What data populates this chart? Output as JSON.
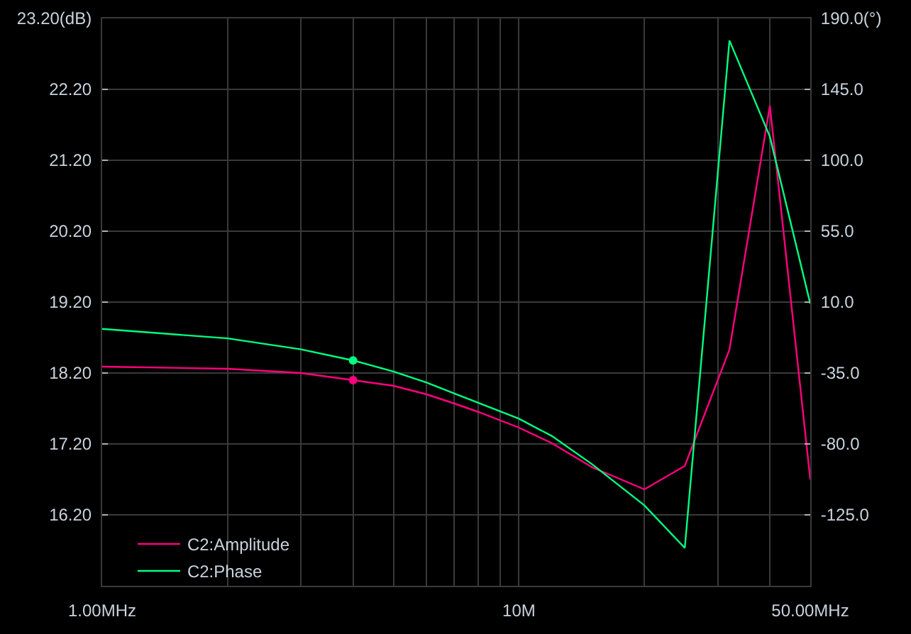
{
  "chart_data": {
    "type": "line",
    "log": "x",
    "grid": true,
    "legend": "bottom left",
    "line_style": "solid",
    "x": [
      1,
      2,
      3,
      4,
      5,
      6,
      7,
      8,
      10,
      12,
      15,
      20,
      25,
      32,
      40,
      50
    ],
    "xlim": [
      1,
      50
    ],
    "xticks": [
      {
        "value": 1,
        "label": "1.00MHz"
      },
      {
        "value": 2,
        "label": null
      },
      {
        "value": 3,
        "label": null
      },
      {
        "value": 4,
        "label": null
      },
      {
        "value": 5,
        "label": null
      },
      {
        "value": 6,
        "label": null
      },
      {
        "value": 7,
        "label": null
      },
      {
        "value": 8,
        "label": null
      },
      {
        "value": 9,
        "label": null
      },
      {
        "value": 10,
        "label": "10M"
      },
      {
        "value": 20,
        "label": null
      },
      {
        "value": 30,
        "label": null
      },
      {
        "value": 40,
        "label": null
      },
      {
        "value": 50,
        "label": "50.00MHz"
      }
    ],
    "ylim": [
      15.2,
      23.2
    ],
    "yticks": [
      {
        "value": 16.2,
        "label": "16.20"
      },
      {
        "value": 17.2,
        "label": "17.20"
      },
      {
        "value": 18.2,
        "label": "18.20"
      },
      {
        "value": 19.2,
        "label": "19.20"
      },
      {
        "value": 20.2,
        "label": "20.20"
      },
      {
        "value": 21.2,
        "label": "21.20"
      },
      {
        "value": 22.2,
        "label": "22.20"
      },
      {
        "value": 23.2,
        "label": "23.20(dB)"
      }
    ],
    "y2lim": [
      -170,
      190
    ],
    "y2ticks": [
      {
        "value": -125,
        "label": "-125.0"
      },
      {
        "value": -80,
        "label": "-80.0"
      },
      {
        "value": -35,
        "label": "-35.0"
      },
      {
        "value": 10,
        "label": "10.0"
      },
      {
        "value": 55,
        "label": "55.0"
      },
      {
        "value": 100,
        "label": "100.0"
      },
      {
        "value": 145,
        "label": "145.0"
      },
      {
        "value": 190,
        "label": "190.0(°)"
      }
    ],
    "series": [
      {
        "name": "C2:Amplitude",
        "color": "#ff007f",
        "values": [
          18.29,
          18.26,
          18.2,
          18.1,
          18.02,
          17.9,
          17.77,
          17.65,
          17.43,
          17.21,
          16.87,
          16.56,
          16.89,
          18.53,
          21.97,
          16.7
        ]
      },
      {
        "name": "C2:Phase",
        "color": "#00ff7f",
        "axis": "y2",
        "values": [
          -7,
          -13,
          -20,
          -27,
          -34,
          -41,
          -48,
          -54,
          -64,
          -75,
          -93,
          -119,
          -146,
          176,
          115,
          9
        ]
      },
      {
        "type": "scatter",
        "color": "#ff007f",
        "marker": "circle",
        "x": [
          4
        ],
        "values": [
          18.1
        ]
      },
      {
        "type": "scatter",
        "color": "#00ff7f",
        "marker": "circle",
        "axis": "y2",
        "x": [
          4
        ],
        "values": [
          -27
        ]
      }
    ]
  }
}
